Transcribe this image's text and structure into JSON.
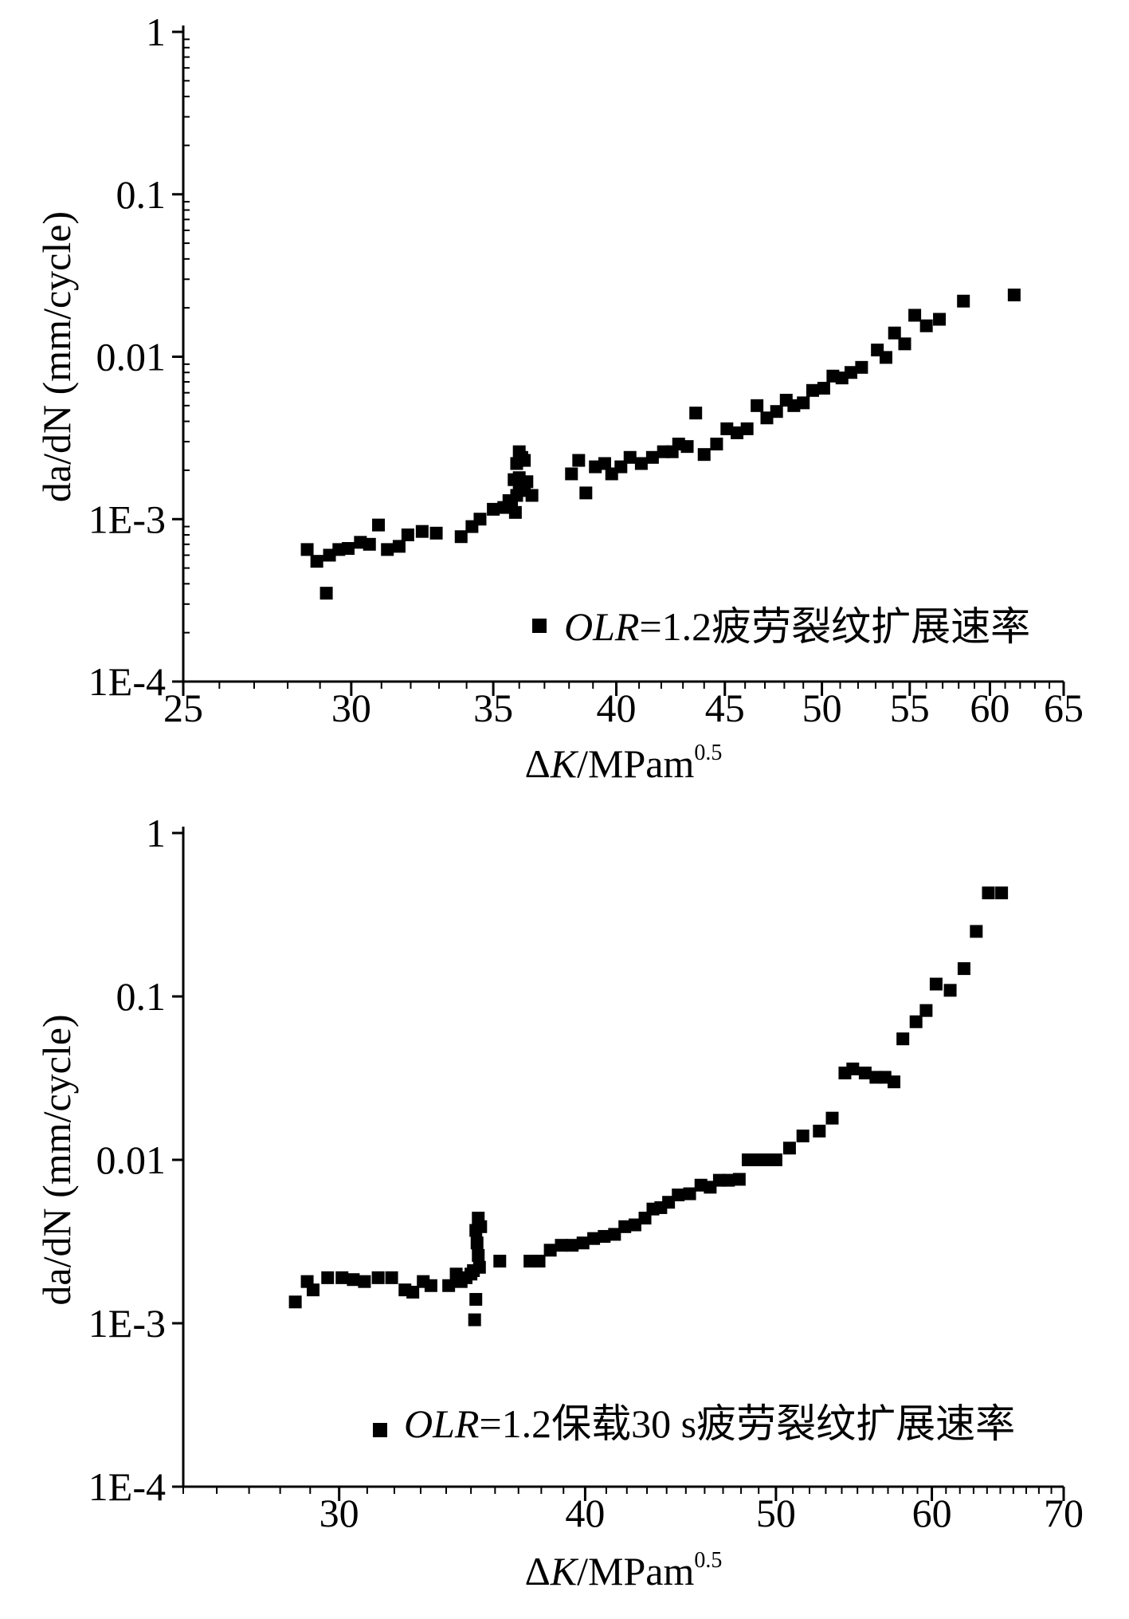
{
  "chart_data": [
    {
      "type": "scatter",
      "xscale": "log",
      "yscale": "log",
      "xlim": [
        25,
        65
      ],
      "ylim": [
        0.0001,
        1
      ],
      "xlabel": {
        "prefix": "Δ",
        "italic": "K",
        "rest": "/MPam",
        "sup": "0.5"
      },
      "ylabel": "da/dN (mm/cycle)",
      "xticks": [
        {
          "value": 25,
          "label": "25"
        },
        {
          "value": 30,
          "label": "30"
        },
        {
          "value": 35,
          "label": "35"
        },
        {
          "value": 40,
          "label": "40"
        },
        {
          "value": 45,
          "label": "45"
        },
        {
          "value": 50,
          "label": "50"
        },
        {
          "value": 55,
          "label": "55"
        },
        {
          "value": 60,
          "label": "60"
        },
        {
          "value": 65,
          "label": "65"
        }
      ],
      "yticks": [
        {
          "value": 0.0001,
          "label": "1E-4"
        },
        {
          "value": 0.001,
          "label": "1E-3"
        },
        {
          "value": 0.01,
          "label": "0.01"
        },
        {
          "value": 0.1,
          "label": "0.1"
        },
        {
          "value": 1,
          "label": "1"
        }
      ],
      "legend_position": "bottom-right",
      "legend": {
        "italic": "OLR",
        "rest": "=1.2疲劳裂纹扩展速率"
      },
      "series": [
        {
          "marker": "square",
          "color": "#000000",
          "x": [
            28.6,
            28.9,
            29.2,
            29.3,
            29.6,
            29.9,
            30.3,
            30.6,
            30.9,
            31.2,
            31.6,
            31.9,
            32.4,
            32.9,
            33.8,
            34.2,
            34.5,
            35.0,
            35.4,
            35.6,
            35.7,
            35.8,
            35.85,
            35.9,
            35.9,
            36.0,
            36.0,
            36.0,
            36.1,
            36.2,
            36.2,
            36.3,
            36.5,
            38.1,
            38.4,
            38.7,
            39.1,
            39.5,
            39.8,
            40.2,
            40.6,
            41.1,
            41.6,
            42.1,
            42.5,
            42.8,
            43.2,
            43.6,
            44.0,
            44.6,
            45.1,
            45.6,
            46.1,
            46.6,
            47.1,
            47.6,
            48.1,
            48.5,
            49.0,
            49.5,
            50.1,
            50.6,
            51.1,
            51.6,
            52.2,
            53.1,
            53.6,
            54.1,
            54.7,
            55.3,
            56.0,
            56.8,
            58.3,
            61.6
          ],
          "y": [
            0.00065,
            0.00055,
            0.00035,
            0.0006,
            0.00065,
            0.00066,
            0.00072,
            0.0007,
            0.00092,
            0.00065,
            0.00068,
            0.0008,
            0.00084,
            0.00082,
            0.00078,
            0.0009,
            0.001,
            0.00115,
            0.00118,
            0.0013,
            0.0012,
            0.00175,
            0.0011,
            0.0022,
            0.0014,
            0.0026,
            0.0016,
            0.0018,
            0.0024,
            0.0023,
            0.0015,
            0.0017,
            0.0014,
            0.0019,
            0.0023,
            0.00145,
            0.0021,
            0.0022,
            0.0019,
            0.0021,
            0.0024,
            0.0022,
            0.0024,
            0.0026,
            0.0026,
            0.0029,
            0.0028,
            0.0045,
            0.0025,
            0.0029,
            0.0036,
            0.0034,
            0.0036,
            0.005,
            0.0042,
            0.0046,
            0.0054,
            0.005,
            0.0052,
            0.0062,
            0.0064,
            0.0076,
            0.0074,
            0.008,
            0.0086,
            0.011,
            0.0099,
            0.014,
            0.012,
            0.018,
            0.0155,
            0.017,
            0.022,
            0.024
          ]
        }
      ]
    },
    {
      "type": "scatter",
      "xscale": "log",
      "yscale": "log",
      "xlim": [
        25,
        70
      ],
      "ylim": [
        0.0001,
        1
      ],
      "xlabel": {
        "prefix": "Δ",
        "italic": "K",
        "rest": "/MPam",
        "sup": "0.5"
      },
      "ylabel": "da/dN (mm/cycle)",
      "xticks": [
        {
          "value": 30,
          "label": "30"
        },
        {
          "value": 40,
          "label": "40"
        },
        {
          "value": 50,
          "label": "50"
        },
        {
          "value": 60,
          "label": "60"
        },
        {
          "value": 70,
          "label": "70"
        }
      ],
      "yticks": [
        {
          "value": 0.0001,
          "label": "1E-4"
        },
        {
          "value": 0.001,
          "label": "1E-3"
        },
        {
          "value": 0.01,
          "label": "0.01"
        },
        {
          "value": 0.1,
          "label": "0.1"
        },
        {
          "value": 1,
          "label": "1"
        }
      ],
      "legend_position": "bottom-right",
      "legend": {
        "italic": "OLR",
        "rest": "=1.2保载30 s疲劳裂纹扩展速率"
      },
      "series": [
        {
          "marker": "square",
          "color": "#000000",
          "x": [
            28.5,
            28.9,
            29.1,
            29.6,
            30.1,
            30.5,
            30.9,
            31.4,
            31.9,
            32.4,
            32.7,
            33.1,
            33.4,
            34.1,
            34.4,
            34.6,
            34.8,
            35.0,
            35.1,
            35.15,
            35.2,
            35.2,
            35.25,
            35.3,
            35.3,
            35.35,
            35.4,
            36.2,
            37.5,
            37.9,
            38.4,
            38.9,
            39.4,
            39.9,
            40.4,
            40.9,
            41.4,
            41.9,
            42.4,
            42.9,
            43.3,
            43.7,
            44.1,
            44.6,
            45.2,
            45.8,
            46.3,
            46.8,
            47.3,
            47.9,
            48.4,
            48.9,
            49.4,
            50.0,
            50.8,
            51.6,
            52.6,
            53.4,
            54.2,
            54.7,
            55.5,
            56.2,
            56.8,
            57.4,
            58.0,
            58.9,
            59.6,
            60.3,
            61.3,
            62.3,
            63.2,
            64.1,
            65.1
          ],
          "y": [
            0.00135,
            0.0018,
            0.0016,
            0.0019,
            0.0019,
            0.00185,
            0.0018,
            0.0019,
            0.0019,
            0.0016,
            0.00155,
            0.0018,
            0.0017,
            0.0017,
            0.002,
            0.0018,
            0.0019,
            0.002,
            0.0021,
            0.00105,
            0.0014,
            0.0037,
            0.0031,
            0.0026,
            0.0044,
            0.0022,
            0.0039,
            0.0024,
            0.0024,
            0.0024,
            0.0028,
            0.003,
            0.003,
            0.0031,
            0.0033,
            0.0034,
            0.0035,
            0.0039,
            0.004,
            0.0044,
            0.005,
            0.0051,
            0.0055,
            0.0061,
            0.0062,
            0.007,
            0.0068,
            0.0075,
            0.0075,
            0.0076,
            0.01,
            0.01,
            0.01,
            0.01,
            0.0118,
            0.014,
            0.015,
            0.018,
            0.034,
            0.036,
            0.034,
            0.032,
            0.032,
            0.03,
            0.055,
            0.07,
            0.082,
            0.119,
            0.109,
            0.148,
            0.25,
            0.43,
            0.43
          ]
        }
      ]
    }
  ]
}
